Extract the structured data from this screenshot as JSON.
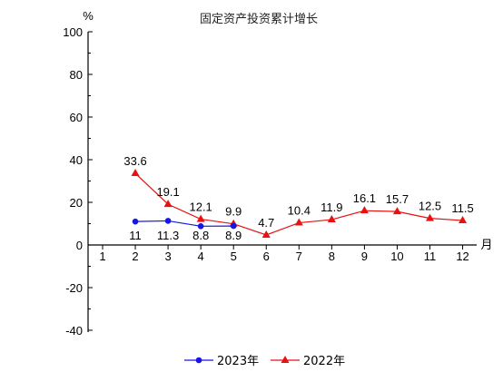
{
  "chart_data": {
    "type": "line",
    "title": "固定资产投资累计增长",
    "y_unit": "%",
    "x_unit": "月",
    "categories": [
      "1",
      "2",
      "3",
      "4",
      "5",
      "6",
      "7",
      "8",
      "9",
      "10",
      "11",
      "12"
    ],
    "ylim": [
      -40,
      100
    ],
    "yticks": [
      "100",
      "80",
      "60",
      "40",
      "20",
      "0",
      "-20",
      "-40"
    ],
    "ytick_values": [
      100,
      80,
      60,
      40,
      20,
      0,
      -20,
      -40
    ],
    "grid": false,
    "legend_position": "bottom",
    "series": [
      {
        "name": "2023年",
        "color": "#1515e6",
        "marker": "circle",
        "x": [
          "2",
          "3",
          "4",
          "5"
        ],
        "values": [
          11,
          11.3,
          8.8,
          8.9
        ],
        "labels": [
          "11",
          "11.3",
          "8.8",
          "8.9"
        ]
      },
      {
        "name": "2022年",
        "color": "#e81010",
        "marker": "triangle",
        "x": [
          "2",
          "3",
          "4",
          "5",
          "6",
          "7",
          "8",
          "9",
          "10",
          "11",
          "12"
        ],
        "values": [
          33.6,
          19.1,
          12.1,
          9.9,
          4.7,
          10.4,
          11.9,
          16.1,
          15.7,
          12.5,
          11.5
        ],
        "labels": [
          "33.6",
          "19.1",
          "12.1",
          "9.9",
          "4.7",
          "10.4",
          "11.9",
          "16.1",
          "15.7",
          "12.5",
          "11.5"
        ]
      }
    ]
  }
}
